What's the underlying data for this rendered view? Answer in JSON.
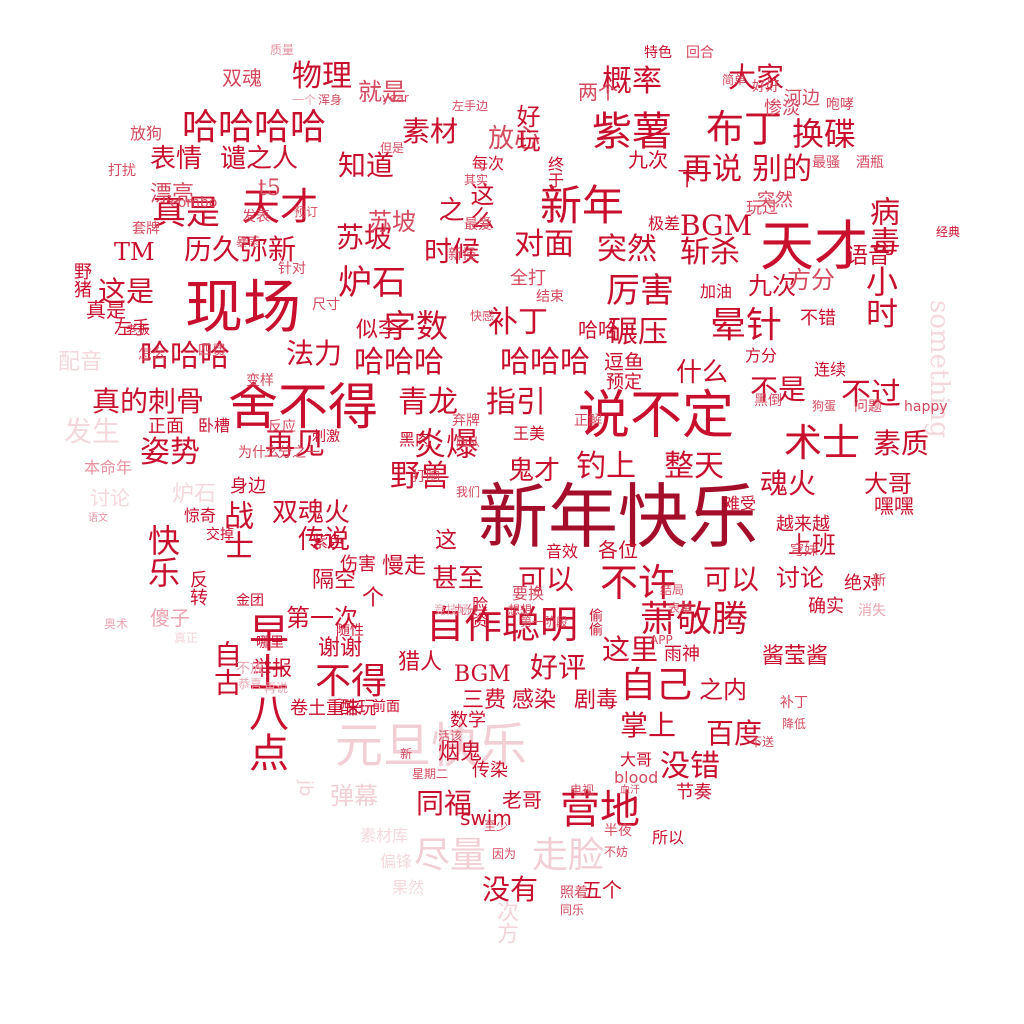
{
  "palette": {
    "primary": "#c8102e",
    "deep": "#a40e2a",
    "mid": "#d44a5e",
    "light": "#e7a9b3",
    "pale": "#f1cdd3"
  },
  "words": [
    {
      "t": "新年快乐",
      "c": "deep"
    },
    {
      "t": "现场",
      "c": "primary"
    },
    {
      "t": "天才",
      "c": "primary"
    },
    {
      "t": "说不定",
      "c": "primary"
    },
    {
      "t": "舍不得",
      "c": "primary"
    },
    {
      "t": "元旦快乐",
      "c": "light"
    },
    {
      "t": "哈哈哈哈",
      "c": "primary"
    },
    {
      "t": "紫薯",
      "c": "primary"
    },
    {
      "t": "布丁",
      "c": "primary"
    },
    {
      "t": "换碟",
      "c": "primary"
    },
    {
      "t": "概率",
      "c": "primary"
    },
    {
      "t": "大家",
      "c": "primary"
    },
    {
      "t": "物理",
      "c": "primary"
    },
    {
      "t": "双魂",
      "c": "mid"
    },
    {
      "t": "就是",
      "c": "mid"
    },
    {
      "t": "素材",
      "c": "primary"
    },
    {
      "t": "放心",
      "c": "mid"
    },
    {
      "t": "好玩",
      "c": "primary"
    },
    {
      "t": "表情",
      "c": "primary"
    },
    {
      "t": "谴之人",
      "c": "primary"
    },
    {
      "t": "知道",
      "c": "primary"
    },
    {
      "t": "再说",
      "c": "primary"
    },
    {
      "t": "别的",
      "c": "primary"
    },
    {
      "t": "真是",
      "c": "primary"
    },
    {
      "t": "天才",
      "c": "primary"
    },
    {
      "t": "新年",
      "c": "primary"
    },
    {
      "t": "病毒",
      "c": "primary"
    },
    {
      "t": "漂亮",
      "c": "mid"
    },
    {
      "t": "t5",
      "c": "mid"
    },
    {
      "t": "BGM",
      "c": "primary"
    },
    {
      "t": "突然",
      "c": "mid"
    },
    {
      "t": "历久弥新",
      "c": "primary"
    },
    {
      "t": "苏坡",
      "c": "primary"
    },
    {
      "t": "时候",
      "c": "primary"
    },
    {
      "t": "对面",
      "c": "primary"
    },
    {
      "t": "突然",
      "c": "primary"
    },
    {
      "t": "斩杀",
      "c": "primary"
    },
    {
      "t": "语音",
      "c": "primary"
    },
    {
      "t": "这是",
      "c": "primary"
    },
    {
      "t": "炉石",
      "c": "primary"
    },
    {
      "t": "厉害",
      "c": "primary"
    },
    {
      "t": "九次",
      "c": "primary"
    },
    {
      "t": "方分",
      "c": "mid"
    },
    {
      "t": "小时",
      "c": "primary"
    },
    {
      "t": "字数",
      "c": "primary"
    },
    {
      "t": "补丁",
      "c": "primary"
    },
    {
      "t": "碾压",
      "c": "primary"
    },
    {
      "t": "晕针",
      "c": "primary"
    },
    {
      "t": "哈哈哈",
      "c": "primary"
    },
    {
      "t": "法力",
      "c": "primary"
    },
    {
      "t": "哈哈哈",
      "c": "primary"
    },
    {
      "t": "哈哈哈",
      "c": "primary"
    },
    {
      "t": "什么",
      "c": "primary"
    },
    {
      "t": "不是",
      "c": "primary"
    },
    {
      "t": "不过",
      "c": "primary"
    },
    {
      "t": "真的刺骨",
      "c": "primary"
    },
    {
      "t": "青龙",
      "c": "primary"
    },
    {
      "t": "指引",
      "c": "primary"
    },
    {
      "t": "姿势",
      "c": "primary"
    },
    {
      "t": "再见",
      "c": "primary"
    },
    {
      "t": "炎爆",
      "c": "primary"
    },
    {
      "t": "术士",
      "c": "primary"
    },
    {
      "t": "素质",
      "c": "primary"
    },
    {
      "t": "野兽",
      "c": "primary"
    },
    {
      "t": "鬼才",
      "c": "primary"
    },
    {
      "t": "钓上",
      "c": "primary"
    },
    {
      "t": "整天",
      "c": "primary"
    },
    {
      "t": "魂火",
      "c": "primary"
    },
    {
      "t": "大哥",
      "c": "primary"
    },
    {
      "t": "双魂火",
      "c": "primary"
    },
    {
      "t": "快乐",
      "c": "primary"
    },
    {
      "t": "战士",
      "c": "primary"
    },
    {
      "t": "传说",
      "c": "primary"
    },
    {
      "t": "上班",
      "c": "primary"
    },
    {
      "t": "隔空",
      "c": "primary"
    },
    {
      "t": "甚至",
      "c": "primary"
    },
    {
      "t": "可以",
      "c": "primary"
    },
    {
      "t": "不许",
      "c": "primary"
    },
    {
      "t": "可以",
      "c": "primary"
    },
    {
      "t": "讨论",
      "c": "primary"
    },
    {
      "t": "第一次",
      "c": "primary"
    },
    {
      "t": "自作聪明",
      "c": "primary"
    },
    {
      "t": "萧敬腾",
      "c": "primary"
    },
    {
      "t": "早上八点",
      "c": "primary"
    },
    {
      "t": "不得",
      "c": "primary"
    },
    {
      "t": "BGM",
      "c": "primary"
    },
    {
      "t": "好评",
      "c": "primary"
    },
    {
      "t": "自己",
      "c": "primary"
    },
    {
      "t": "之内",
      "c": "primary"
    },
    {
      "t": "三费",
      "c": "primary"
    },
    {
      "t": "感染",
      "c": "primary"
    },
    {
      "t": "剧毒",
      "c": "primary"
    },
    {
      "t": "掌上",
      "c": "primary"
    },
    {
      "t": "百度",
      "c": "primary"
    },
    {
      "t": "没错",
      "c": "primary"
    },
    {
      "t": "弹幕",
      "c": "light"
    },
    {
      "t": "同福",
      "c": "primary"
    },
    {
      "t": "营地",
      "c": "primary"
    },
    {
      "t": "尽量",
      "c": "light"
    },
    {
      "t": "走脸",
      "c": "light"
    },
    {
      "t": "没有",
      "c": "primary"
    },
    {
      "t": "五个",
      "c": "primary"
    },
    {
      "t": "自古",
      "c": "primary"
    },
    {
      "t": "这里",
      "c": "primary"
    },
    {
      "t": "酱莹酱",
      "c": "primary"
    },
    {
      "t": "谢谢",
      "c": "primary"
    },
    {
      "t": "举报",
      "c": "primary"
    },
    {
      "t": "猎人",
      "c": "primary"
    },
    {
      "t": "something",
      "c": "light"
    },
    {
      "t": "发生",
      "c": "light"
    },
    {
      "t": "配音",
      "c": "light"
    },
    {
      "t": "讨论",
      "c": "light"
    },
    {
      "t": "炉石",
      "c": "light"
    },
    {
      "t": "swim",
      "c": "primary"
    },
    {
      "t": "老哥",
      "c": "primary"
    },
    {
      "t": "次方",
      "c": "light"
    },
    {
      "t": "素材库",
      "c": "light"
    },
    {
      "t": "偏锋",
      "c": "light"
    },
    {
      "t": "果然",
      "c": "light"
    },
    {
      "t": "烟鬼",
      "c": "primary"
    },
    {
      "t": "传染",
      "c": "primary"
    },
    {
      "t": "大哥",
      "c": "primary"
    },
    {
      "t": "节奏",
      "c": "primary"
    },
    {
      "t": "所以",
      "c": "primary"
    },
    {
      "t": "确实",
      "c": "primary"
    },
    {
      "t": "绝对",
      "c": "primary"
    },
    {
      "t": "难受",
      "c": "primary"
    },
    {
      "t": "越来越",
      "c": "primary"
    },
    {
      "t": "嘿嘿",
      "c": "primary"
    },
    {
      "t": "经典",
      "c": "primary"
    },
    {
      "t": "TM",
      "c": "primary"
    },
    {
      "t": "真是",
      "c": "primary"
    },
    {
      "t": "左手",
      "c": "primary"
    },
    {
      "t": "野猪",
      "c": "primary"
    },
    {
      "t": "苏坡",
      "c": "mid"
    },
    {
      "t": "似李",
      "c": "primary"
    },
    {
      "t": "之",
      "c": "primary"
    },
    {
      "t": "这么",
      "c": "primary"
    },
    {
      "t": "每次",
      "c": "primary"
    },
    {
      "t": "终于",
      "c": "primary"
    },
    {
      "t": "九次",
      "c": "primary"
    },
    {
      "t": "下",
      "c": "primary"
    },
    {
      "t": "极差",
      "c": "primary"
    },
    {
      "t": "加油",
      "c": "primary"
    },
    {
      "t": "哈哈",
      "c": "primary"
    },
    {
      "t": "逗鱼",
      "c": "primary"
    },
    {
      "t": "预定",
      "c": "primary"
    },
    {
      "t": "不错",
      "c": "primary"
    },
    {
      "t": "方分",
      "c": "primary"
    },
    {
      "t": "连续",
      "c": "primary"
    },
    {
      "t": "黑肉",
      "c": "primary"
    },
    {
      "t": "王美",
      "c": "primary"
    },
    {
      "t": "正面",
      "c": "primary"
    },
    {
      "t": "卧槽",
      "c": "primary"
    },
    {
      "t": "刺激",
      "c": "primary"
    },
    {
      "t": "身边",
      "c": "primary"
    },
    {
      "t": "惊奇",
      "c": "primary"
    },
    {
      "t": "反转",
      "c": "primary"
    },
    {
      "t": "交掉",
      "c": "primary"
    },
    {
      "t": "伤害",
      "c": "primary"
    },
    {
      "t": "紫色",
      "c": "primary"
    },
    {
      "t": "音效",
      "c": "primary"
    },
    {
      "t": "各位",
      "c": "primary"
    },
    {
      "t": "金团",
      "c": "primary"
    },
    {
      "t": "随性",
      "c": "primary"
    },
    {
      "t": "哪里",
      "c": "primary"
    },
    {
      "t": "脸资",
      "c": "primary"
    },
    {
      "t": "偷偷",
      "c": "primary"
    },
    {
      "t": "雨神",
      "c": "primary"
    },
    {
      "t": "卷土重来",
      "c": "primary"
    },
    {
      "t": "酷玩",
      "c": "primary"
    },
    {
      "t": "前面",
      "c": "primary"
    },
    {
      "t": "数学",
      "c": "primary"
    },
    {
      "t": "慢走",
      "c": "primary"
    },
    {
      "t": "个",
      "c": "primary"
    },
    {
      "t": "这",
      "c": "primary"
    },
    {
      "t": "特色",
      "c": "primary"
    },
    {
      "t": "回合",
      "c": "mid"
    },
    {
      "t": "两个",
      "c": "mid"
    },
    {
      "t": "河边",
      "c": "mid"
    },
    {
      "t": "惨淡",
      "c": "mid"
    },
    {
      "t": "咆哮",
      "c": "mid"
    },
    {
      "t": "玩过",
      "c": "mid"
    },
    {
      "t": "最骚",
      "c": "mid"
    },
    {
      "t": "酒瓶",
      "c": "mid"
    },
    {
      "t": "放狗",
      "c": "mid"
    },
    {
      "t": "打扰",
      "c": "mid"
    },
    {
      "t": "套牌",
      "c": "mid"
    },
    {
      "t": "combo",
      "c": "mid"
    },
    {
      "t": "暴雨",
      "c": "mid"
    },
    {
      "t": "针对",
      "c": "mid"
    },
    {
      "t": "尺寸",
      "c": "mid"
    },
    {
      "t": "四费",
      "c": "mid"
    },
    {
      "t": "变样",
      "c": "mid"
    },
    {
      "t": "反应",
      "c": "mid"
    },
    {
      "t": "为什么",
      "c": "mid"
    },
    {
      "t": "二分之一",
      "c": "mid"
    },
    {
      "t": "弃牌",
      "c": "mid"
    },
    {
      "t": "随从",
      "c": "mid"
    },
    {
      "t": "正解",
      "c": "mid"
    },
    {
      "t": "黑倒",
      "c": "mid"
    },
    {
      "t": "狗蛋",
      "c": "mid"
    },
    {
      "t": "问题",
      "c": "mid"
    },
    {
      "t": "happy",
      "c": "mid"
    },
    {
      "t": "穹妹",
      "c": "mid"
    },
    {
      "t": "结局",
      "c": "mid"
    },
    {
      "t": "表单",
      "c": "mid"
    },
    {
      "t": "APP",
      "c": "mid"
    },
    {
      "t": "补丁",
      "c": "mid"
    },
    {
      "t": "降低",
      "c": "mid"
    },
    {
      "t": "blood",
      "c": "mid"
    },
    {
      "t": "血汗",
      "c": "mid"
    },
    {
      "t": "不送",
      "c": "mid"
    },
    {
      "t": "电视",
      "c": "mid"
    },
    {
      "t": "半夜",
      "c": "mid"
    },
    {
      "t": "不妨",
      "c": "mid"
    },
    {
      "t": "照着",
      "c": "mid"
    },
    {
      "t": "同乐",
      "c": "mid"
    },
    {
      "t": "至少",
      "c": "mid"
    },
    {
      "t": "因为",
      "c": "mid"
    },
    {
      "t": "质量",
      "c": "mid"
    },
    {
      "t": "简单",
      "c": "mid"
    },
    {
      "t": "好好",
      "c": "mid"
    },
    {
      "t": "浑身",
      "c": "mid"
    },
    {
      "t": "一个",
      "c": "light"
    },
    {
      "t": "year",
      "c": "mid"
    },
    {
      "t": "左手边",
      "c": "mid"
    },
    {
      "t": "但是",
      "c": "mid"
    },
    {
      "t": "其实",
      "c": "mid"
    },
    {
      "t": "最爱",
      "c": "mid"
    },
    {
      "t": "新怪",
      "c": "mid"
    },
    {
      "t": "快感",
      "c": "mid"
    },
    {
      "t": "结束",
      "c": "mid"
    },
    {
      "t": "全打",
      "c": "mid"
    },
    {
      "t": "预订",
      "c": "mid"
    },
    {
      "t": "发表",
      "c": "mid"
    },
    {
      "t": "怎么",
      "c": "mid"
    },
    {
      "t": "老板",
      "c": "primary"
    },
    {
      "t": "本命年",
      "c": "mid"
    },
    {
      "t": "语文",
      "c": "mid"
    },
    {
      "t": "奥术",
      "c": "mid"
    },
    {
      "t": "傻子",
      "c": "mid"
    },
    {
      "t": "真正",
      "c": "light"
    },
    {
      "t": "不放",
      "c": "light"
    },
    {
      "t": "恭喜",
      "c": "light"
    },
    {
      "t": "再说",
      "c": "light"
    },
    {
      "t": "jb",
      "c": "light"
    },
    {
      "t": "打响",
      "c": "mid"
    },
    {
      "t": "我们",
      "c": "mid"
    },
    {
      "t": "九分",
      "c": "mid"
    },
    {
      "t": "竞技场",
      "c": "light"
    },
    {
      "t": "要换",
      "c": "mid"
    },
    {
      "t": "想想",
      "c": "mid"
    },
    {
      "t": "第一阶段",
      "c": "mid"
    },
    {
      "t": "星期二",
      "c": "mid"
    },
    {
      "t": "新",
      "c": "mid"
    },
    {
      "t": "活该",
      "c": "mid"
    },
    {
      "t": "消失",
      "c": "mid"
    },
    {
      "t": "新",
      "c": "mid"
    },
    {
      "t": "冰萨",
      "c": "mid"
    },
    {
      "t": "而已",
      "c": "mid"
    },
    {
      "t": "难看",
      "c": "mid"
    },
    {
      "t": "一哥",
      "c": "light"
    },
    {
      "t": "分卡",
      "c": "mid"
    }
  ]
}
